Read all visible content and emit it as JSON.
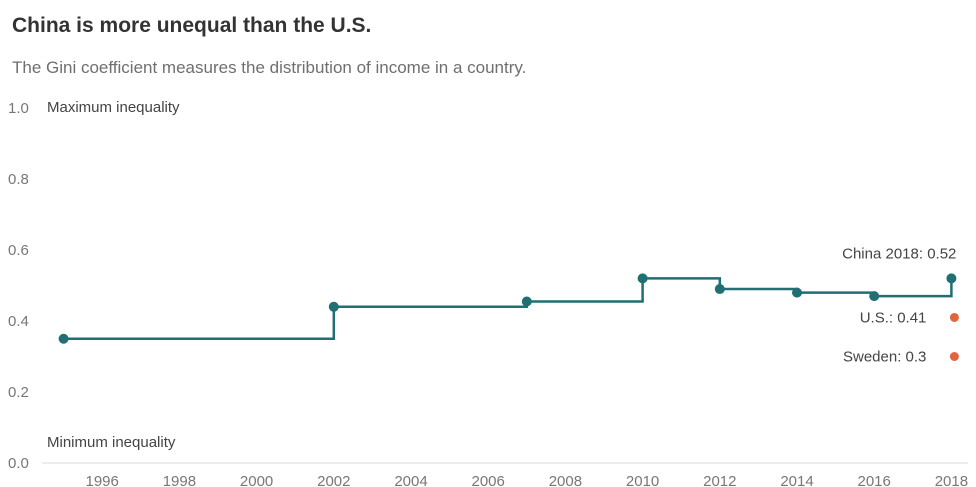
{
  "header": {
    "title": "China is more unequal than the U.S.",
    "subtitle": "The Gini coefficient measures the distribution of income in a country."
  },
  "chart_data": {
    "type": "line",
    "step": true,
    "x": [
      1995,
      2002,
      2007,
      2010,
      2012,
      2014,
      2016,
      2018
    ],
    "series": [
      {
        "values": [
          0.35,
          0.44,
          0.455,
          0.52,
          0.49,
          0.48,
          0.47,
          0.52
        ],
        "color": "#1f6f73"
      }
    ],
    "reference_points": [
      {
        "label": "U.S.: 0.41",
        "x": 2018,
        "y": 0.41,
        "color": "#e0643c"
      },
      {
        "label": "Sweden: 0.3",
        "x": 2018,
        "y": 0.3,
        "color": "#e0643c"
      }
    ],
    "end_label": "China 2018: 0.52",
    "y_annotations": {
      "top": "Maximum inequality",
      "bottom": "Minimum inequality"
    },
    "ylim": [
      0,
      1.0
    ],
    "yticks": [
      "0.0",
      "0.2",
      "0.4",
      "0.6",
      "0.8",
      "1.0"
    ],
    "xlim": [
      1994,
      2018
    ],
    "xticks": [
      "1996",
      "1998",
      "2000",
      "2002",
      "2004",
      "2006",
      "2008",
      "2010",
      "2012",
      "2014",
      "2016",
      "2018"
    ],
    "grid": false,
    "legend": "none"
  }
}
